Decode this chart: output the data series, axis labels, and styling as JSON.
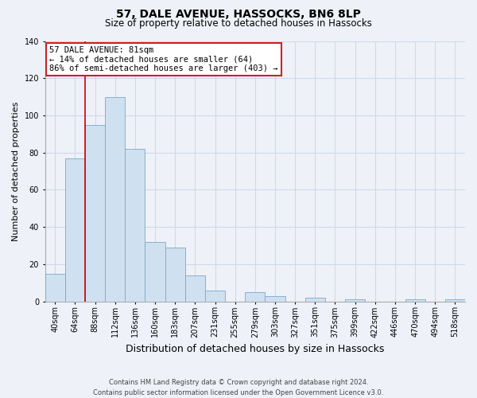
{
  "title": "57, DALE AVENUE, HASSOCKS, BN6 8LP",
  "subtitle": "Size of property relative to detached houses in Hassocks",
  "xlabel": "Distribution of detached houses by size in Hassocks",
  "ylabel": "Number of detached properties",
  "bar_labels": [
    "40sqm",
    "64sqm",
    "88sqm",
    "112sqm",
    "136sqm",
    "160sqm",
    "183sqm",
    "207sqm",
    "231sqm",
    "255sqm",
    "279sqm",
    "303sqm",
    "327sqm",
    "351sqm",
    "375sqm",
    "399sqm",
    "422sqm",
    "446sqm",
    "470sqm",
    "494sqm",
    "518sqm"
  ],
  "bar_values": [
    15,
    77,
    95,
    110,
    82,
    32,
    29,
    14,
    6,
    0,
    5,
    3,
    0,
    2,
    0,
    1,
    0,
    0,
    1,
    0,
    1
  ],
  "bar_color": "#cfe0f0",
  "bar_edge_color": "#7ba7cc",
  "vline_position": 1.5,
  "vline_color": "#cc0000",
  "ylim": [
    0,
    140
  ],
  "yticks": [
    0,
    20,
    40,
    60,
    80,
    100,
    120,
    140
  ],
  "annotation_title": "57 DALE AVENUE: 81sqm",
  "annotation_line1": "← 14% of detached houses are smaller (64)",
  "annotation_line2": "86% of semi-detached houses are larger (403) →",
  "footer_line1": "Contains HM Land Registry data © Crown copyright and database right 2024.",
  "footer_line2": "Contains public sector information licensed under the Open Government Licence v3.0.",
  "background_color": "#eef2f8",
  "grid_color": "#d0d8e8",
  "title_fontsize": 10,
  "subtitle_fontsize": 8.5,
  "ylabel_fontsize": 8,
  "xlabel_fontsize": 9,
  "tick_fontsize": 7,
  "annotation_fontsize": 7.5,
  "footer_fontsize": 6
}
